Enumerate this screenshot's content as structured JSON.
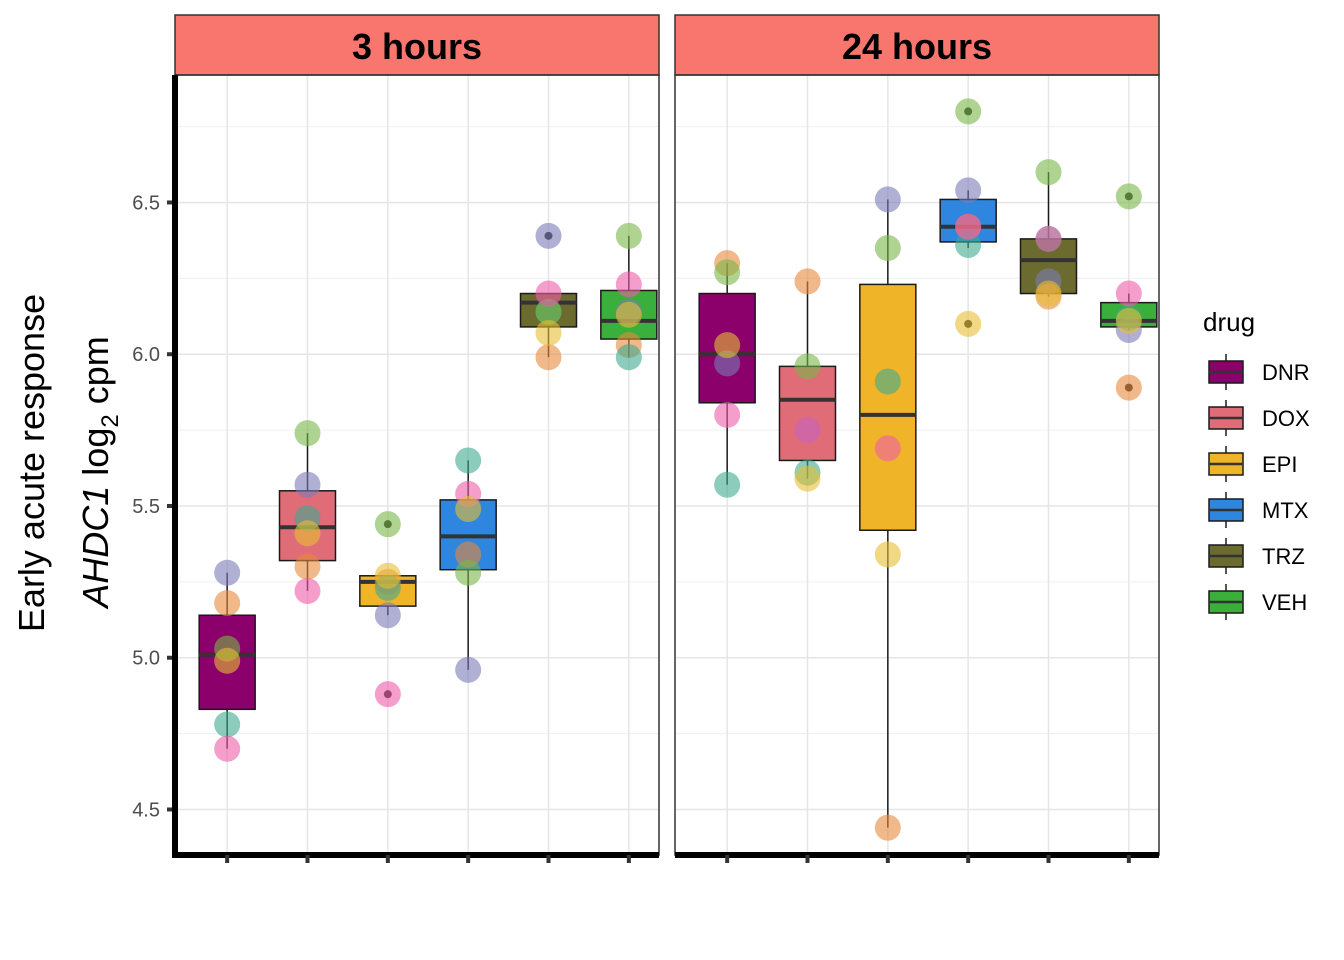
{
  "chart_data": {
    "type": "box",
    "ylabel": {
      "line1": "Early acute response",
      "gene": "AHDC1",
      "log": "log",
      "base": "2",
      "unit": "cpm"
    },
    "ylim": [
      4.35,
      6.92
    ],
    "yticks": [
      {
        "value": 4.5,
        "label": "4.5"
      },
      {
        "value": 5.0,
        "label": "5.0"
      },
      {
        "value": 5.5,
        "label": "5.5"
      },
      {
        "value": 6.0,
        "label": "6.0"
      },
      {
        "value": 6.5,
        "label": "6.5"
      }
    ],
    "categories": [
      "DNR",
      "DOX",
      "EPI",
      "MTX",
      "TRZ",
      "VEH"
    ],
    "legend": {
      "title": "drug",
      "placement": "right",
      "items": [
        {
          "label": "DNR",
          "color": "#8B006B"
        },
        {
          "label": "DOX",
          "color": "#E06C78"
        },
        {
          "label": "EPI",
          "color": "#F0B429"
        },
        {
          "label": "MTX",
          "color": "#2E86DE"
        },
        {
          "label": "TRZ",
          "color": "#6B6B2F"
        },
        {
          "label": "VEH",
          "color": "#3BAF3B"
        }
      ]
    },
    "point_colors": [
      "#7B7BB8",
      "#E8883A",
      "#3DAA8F",
      "#7AB648",
      "#EE5EA9",
      "#E8BE32"
    ],
    "panels": [
      {
        "title": "3 hours",
        "boxes": [
          {
            "drug": "DNR",
            "q1": 4.83,
            "median": 5.01,
            "q3": 5.14,
            "whisker_low": 4.7,
            "whisker_high": 5.28,
            "points": [
              5.28,
              5.18,
              4.78,
              5.03,
              4.7,
              4.99
            ]
          },
          {
            "drug": "DOX",
            "q1": 5.32,
            "median": 5.43,
            "q3": 5.55,
            "whisker_low": 5.22,
            "whisker_high": 5.74,
            "points": [
              5.57,
              5.3,
              5.46,
              5.74,
              5.22,
              5.41
            ]
          },
          {
            "drug": "EPI",
            "q1": 5.17,
            "median": 5.25,
            "q3": 5.27,
            "whisker_low": 5.14,
            "whisker_high": 5.27,
            "outliers": [
              5.44,
              4.88
            ],
            "points": [
              5.14,
              5.25,
              5.23,
              5.44,
              4.88,
              5.27
            ]
          },
          {
            "drug": "MTX",
            "q1": 5.29,
            "median": 5.4,
            "q3": 5.52,
            "whisker_low": 4.96,
            "whisker_high": 5.65,
            "points": [
              4.96,
              5.34,
              5.65,
              5.28,
              5.54,
              5.49
            ]
          },
          {
            "drug": "TRZ",
            "q1": 6.09,
            "median": 6.17,
            "q3": 6.2,
            "whisker_low": 5.99,
            "whisker_high": 6.2,
            "outliers": [
              6.39
            ],
            "points": [
              6.39,
              5.99,
              6.14,
              6.14,
              6.2,
              6.07
            ]
          },
          {
            "drug": "VEH",
            "q1": 6.05,
            "median": 6.11,
            "q3": 6.21,
            "whisker_low": 5.99,
            "whisker_high": 6.39,
            "points": [
              6.14,
              6.03,
              5.99,
              6.39,
              6.23,
              6.13
            ]
          }
        ]
      },
      {
        "title": "24 hours",
        "boxes": [
          {
            "drug": "DNR",
            "q1": 5.84,
            "median": 6.0,
            "q3": 6.2,
            "whisker_low": 5.57,
            "whisker_high": 6.3,
            "points": [
              5.97,
              6.3,
              5.57,
              6.27,
              5.8,
              6.03
            ]
          },
          {
            "drug": "DOX",
            "q1": 5.65,
            "median": 5.85,
            "q3": 5.96,
            "whisker_low": 5.59,
            "whisker_high": 6.24,
            "points": [
              5.75,
              6.24,
              5.61,
              5.96,
              5.75,
              5.59
            ]
          },
          {
            "drug": "EPI",
            "q1": 5.42,
            "median": 5.8,
            "q3": 6.23,
            "whisker_low": 4.44,
            "whisker_high": 6.51,
            "points": [
              6.51,
              4.44,
              5.91,
              6.35,
              5.69,
              5.34
            ]
          },
          {
            "drug": "MTX",
            "q1": 6.37,
            "median": 6.42,
            "q3": 6.51,
            "whisker_low": 6.35,
            "whisker_high": 6.54,
            "outliers": [
              6.8,
              6.1
            ],
            "points": [
              6.54,
              6.42,
              6.36,
              6.8,
              6.42,
              6.1
            ]
          },
          {
            "drug": "TRZ",
            "q1": 6.2,
            "median": 6.31,
            "q3": 6.38,
            "whisker_low": 6.19,
            "whisker_high": 6.6,
            "points": [
              6.24,
              6.19,
              6.38,
              6.6,
              6.38,
              6.2
            ]
          },
          {
            "drug": "VEH",
            "q1": 6.09,
            "median": 6.11,
            "q3": 6.17,
            "whisker_low": 6.08,
            "whisker_high": 6.2,
            "outliers": [
              6.52,
              5.89
            ],
            "points": [
              6.08,
              5.89,
              6.12,
              6.52,
              6.2,
              6.11
            ]
          }
        ]
      }
    ]
  }
}
